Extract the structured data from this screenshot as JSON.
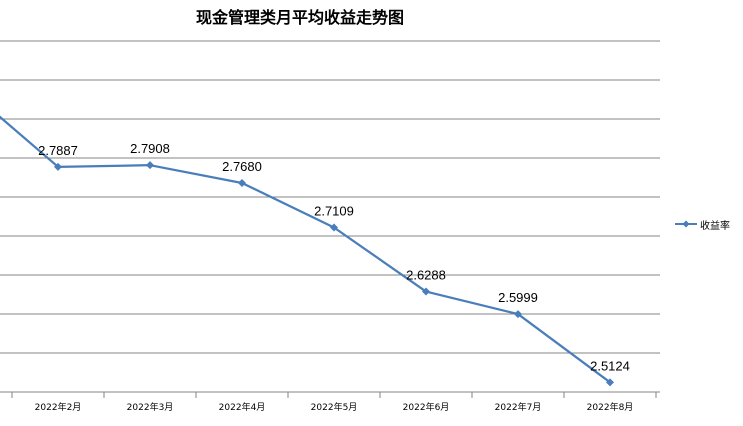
{
  "chart_data": {
    "type": "line",
    "title": "现金管理类月平均收益走势图",
    "categories": [
      "",
      "2022年2月",
      "2022年3月",
      "2022年4月",
      "2022年5月",
      "2022年6月",
      "2022年7月",
      "2022年8月"
    ],
    "series": [
      {
        "name": "收益率",
        "values": [
          2.89,
          2.7887,
          2.7908,
          2.768,
          2.7109,
          2.6288,
          2.5999,
          2.5124
        ],
        "labels": [
          "",
          "2.7887",
          "2.7908",
          "2.7680",
          "2.7109",
          "2.6288",
          "2.5999",
          "2.5124"
        ],
        "color": "#4a7ebb"
      }
    ],
    "ylim": [
      2.5,
      2.95
    ],
    "grid": true,
    "legend": "right"
  }
}
